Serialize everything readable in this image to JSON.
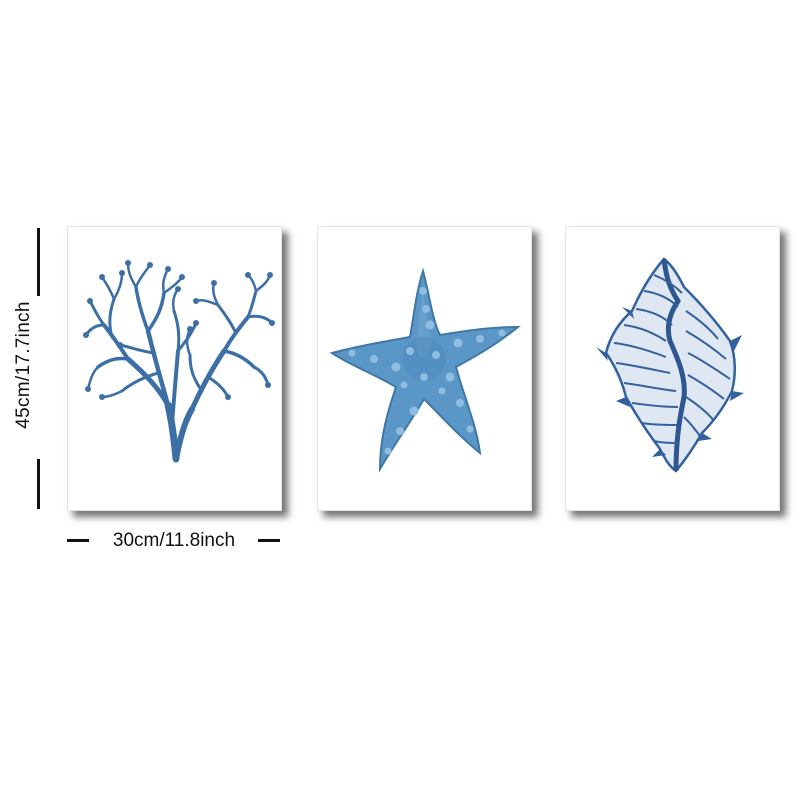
{
  "dimensions": {
    "height_label": "45cm/17.7inch",
    "width_label": "30cm/11.8inch"
  },
  "panels": [
    {
      "subject": "coral-icon",
      "color": "#3c6fa6"
    },
    {
      "subject": "starfish-icon",
      "color": "#4f8cbc"
    },
    {
      "subject": "seashell-icon",
      "color": "#33619f"
    }
  ]
}
